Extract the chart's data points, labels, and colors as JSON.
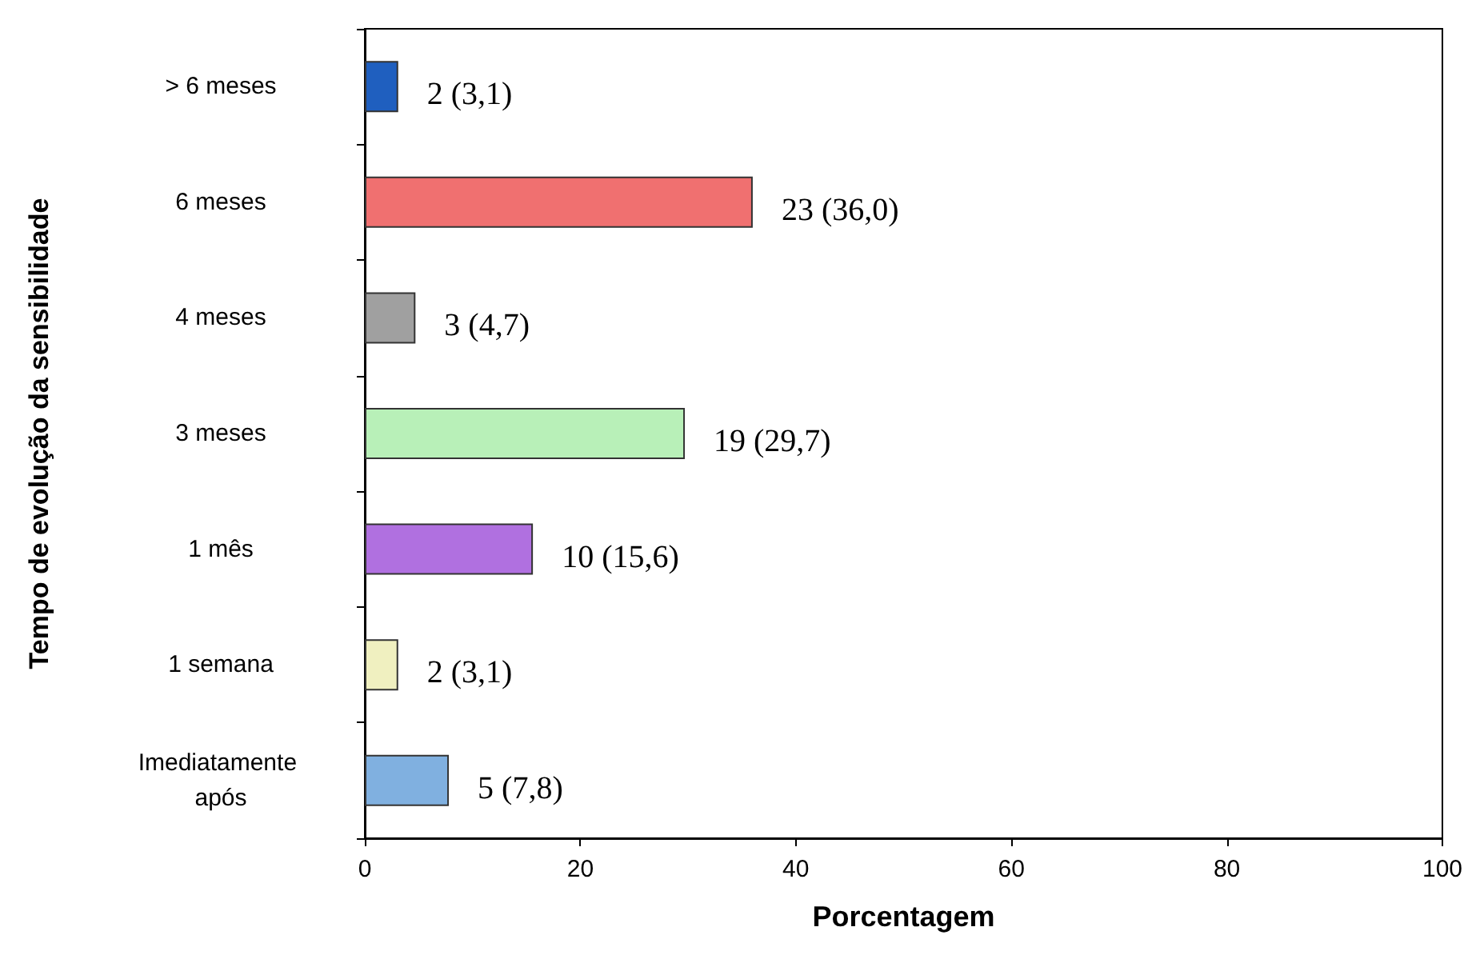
{
  "chart_data": {
    "type": "bar",
    "orientation": "horizontal",
    "xlabel": "Porcentagem",
    "ylabel": "Tempo de evolução da sensibilidade",
    "categories": [
      "> 6 meses",
      "6 meses",
      "4 meses",
      "3 meses",
      "1 mês",
      "1 semana",
      "Imediatamente após"
    ],
    "values": [
      3.1,
      36.0,
      4.7,
      29.7,
      15.6,
      3.1,
      7.8
    ],
    "colors": [
      "#1f5fbf",
      "#f07070",
      "#a0a0a0",
      "#b8f0b8",
      "#b070e0",
      "#f0f0c0",
      "#80b0e0"
    ],
    "value_labels": [
      "2 (3,1)",
      "23 (36,0)",
      "3 (4,7)",
      "19 (29,7)",
      "10 (15,6)",
      "2 (3,1)",
      "5 (7,8)"
    ],
    "xlim": [
      0,
      100
    ],
    "xticks": [
      0,
      20,
      40,
      60,
      80,
      100
    ],
    "grid": false
  }
}
